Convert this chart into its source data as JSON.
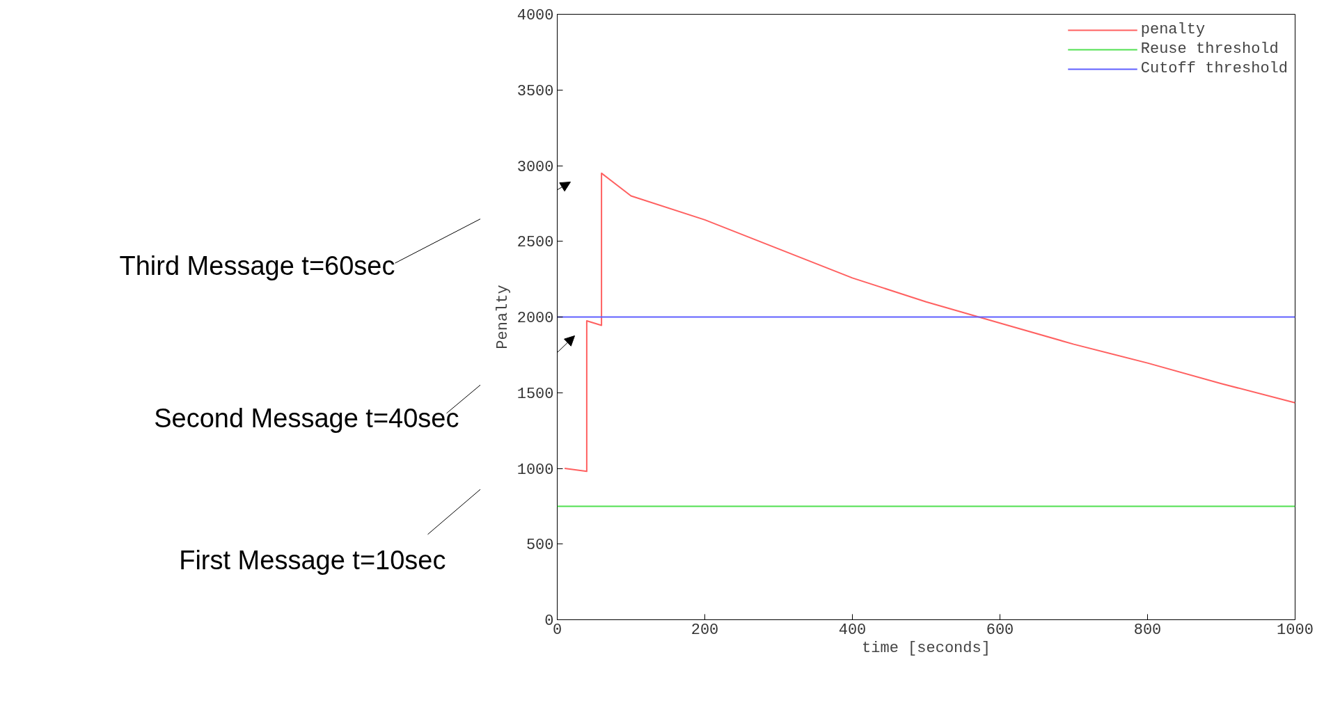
{
  "chart_data": {
    "type": "line",
    "xlabel": "time [seconds]",
    "ylabel": "Penalty",
    "xlim": [
      0,
      1000
    ],
    "ylim": [
      0,
      4000
    ],
    "xticks": [
      0,
      200,
      400,
      600,
      800,
      1000
    ],
    "yticks": [
      0,
      500,
      1000,
      1500,
      2000,
      2500,
      3000,
      3500,
      4000
    ],
    "grid": false,
    "legend": "top right",
    "marker": "none",
    "line_style": "solid",
    "series": [
      {
        "name": "penalty",
        "color": "#ff6060",
        "x": [
          10,
          40,
          40,
          60,
          60,
          100,
          200,
          300,
          400,
          500,
          600,
          700,
          800,
          900,
          1000
        ],
        "values": [
          1000,
          980,
          1975,
          1945,
          2950,
          2800,
          2642,
          2450,
          2258,
          2100,
          1960,
          1820,
          1696,
          1560,
          1433
        ]
      },
      {
        "name": "Reuse threshold",
        "color": "#50e050",
        "x": [
          0,
          1000
        ],
        "values": [
          750,
          750
        ]
      },
      {
        "name": "Cutoff threshold",
        "color": "#6060ff",
        "x": [
          0,
          1000
        ],
        "values": [
          2000,
          2000
        ]
      }
    ],
    "annotations": [
      "First Message t=10sec",
      "Second Message t=40sec",
      "Third Message t=60sec"
    ]
  }
}
